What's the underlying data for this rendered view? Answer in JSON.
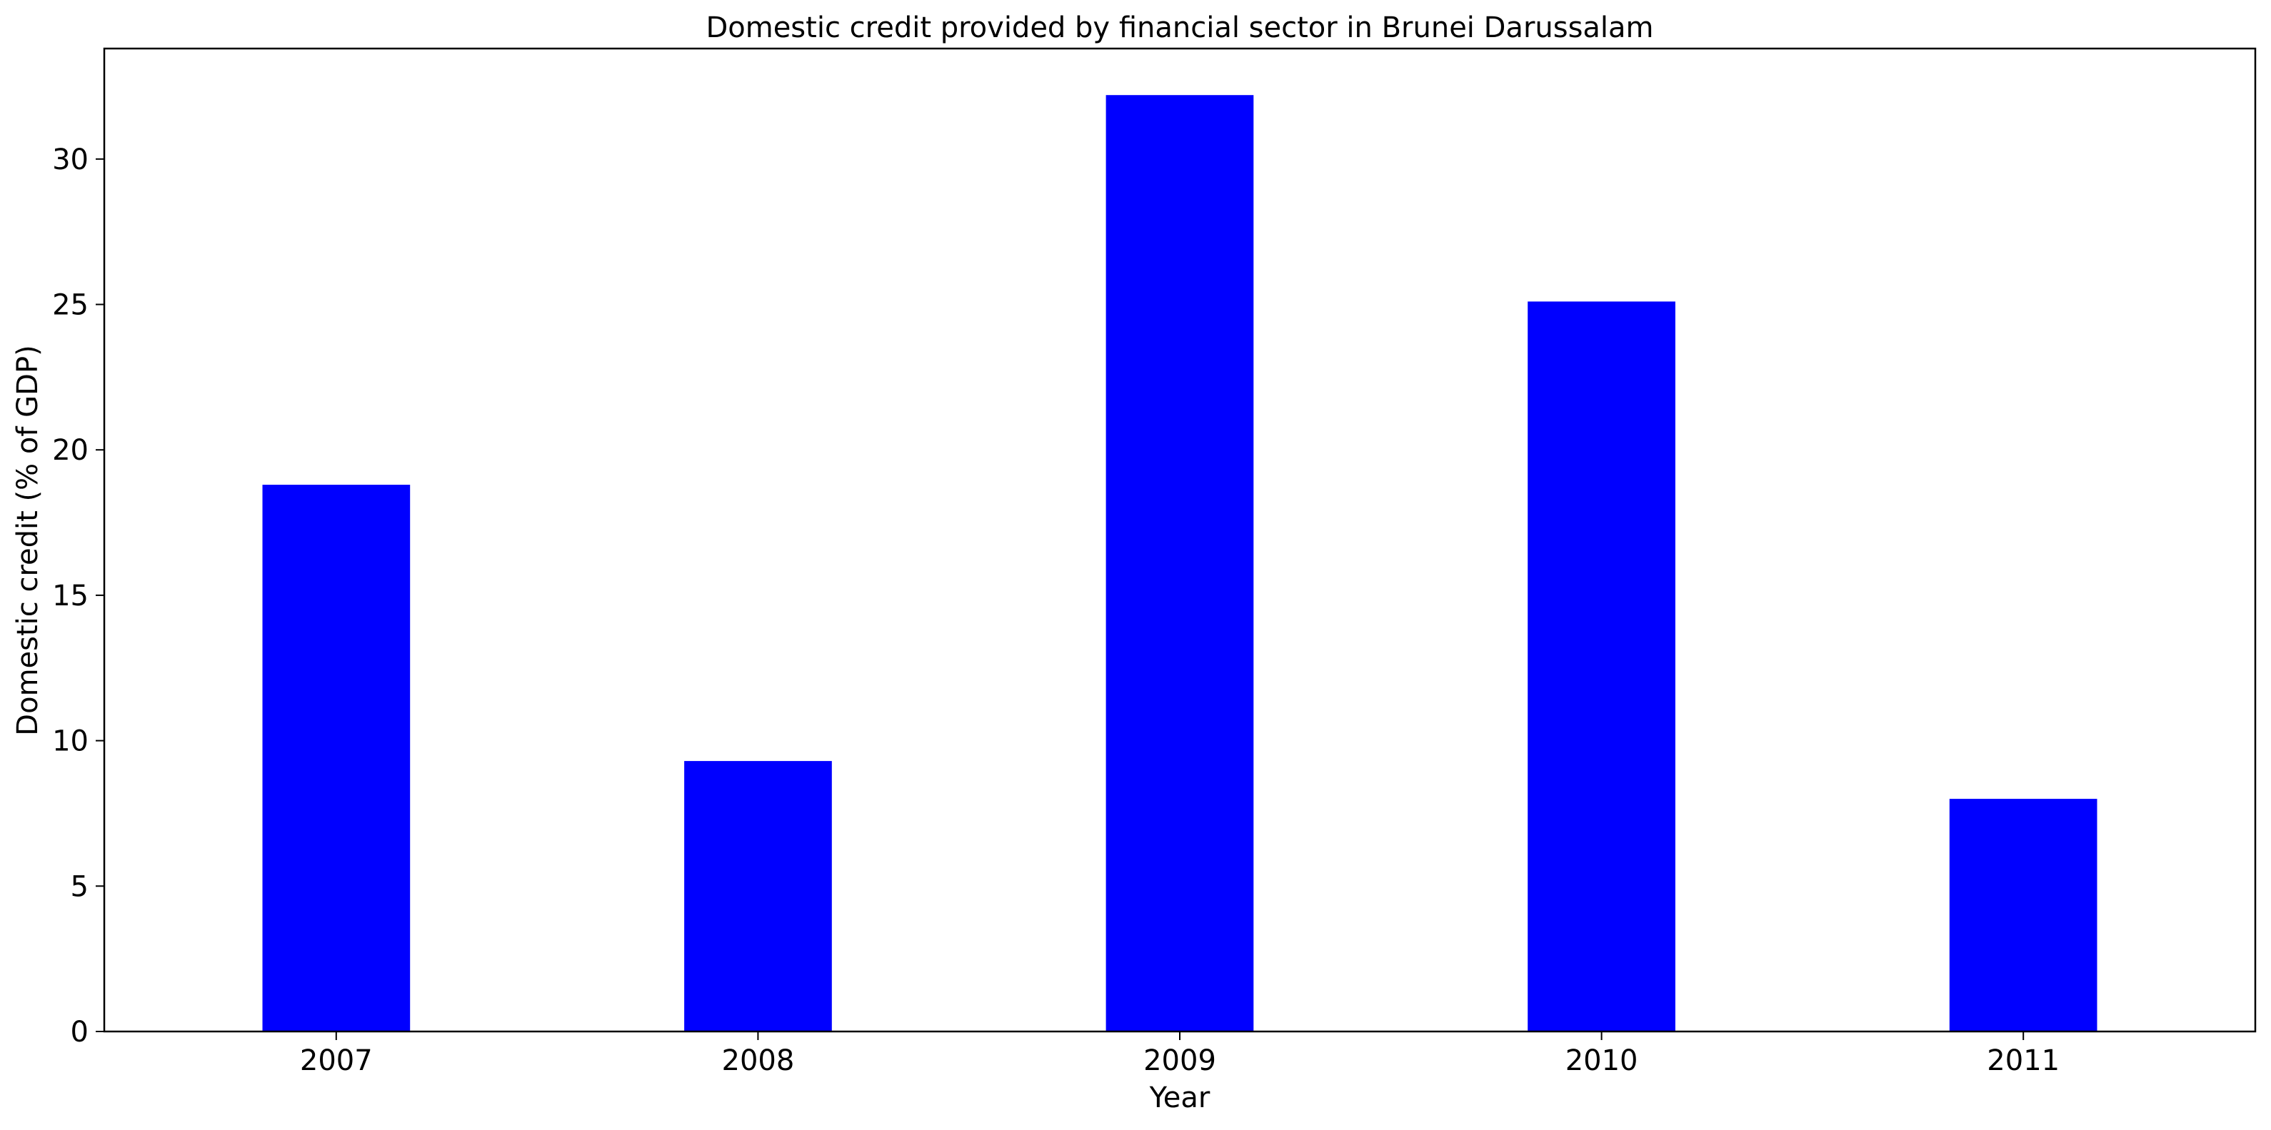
{
  "chart_data": {
    "type": "bar",
    "title": "Domestic credit provided by financial sector in Brunei Darussalam",
    "xlabel": "Year",
    "ylabel": "Domestic credit (% of GDP)",
    "categories": [
      "2007",
      "2008",
      "2009",
      "2010",
      "2011"
    ],
    "values": [
      18.8,
      9.3,
      32.2,
      25.1,
      8.0
    ],
    "ylim": [
      0,
      33.8
    ],
    "yticks": [
      0,
      5,
      10,
      15,
      20,
      25,
      30
    ],
    "grid": false,
    "legend": "none",
    "bar_color": "#0000ff"
  }
}
